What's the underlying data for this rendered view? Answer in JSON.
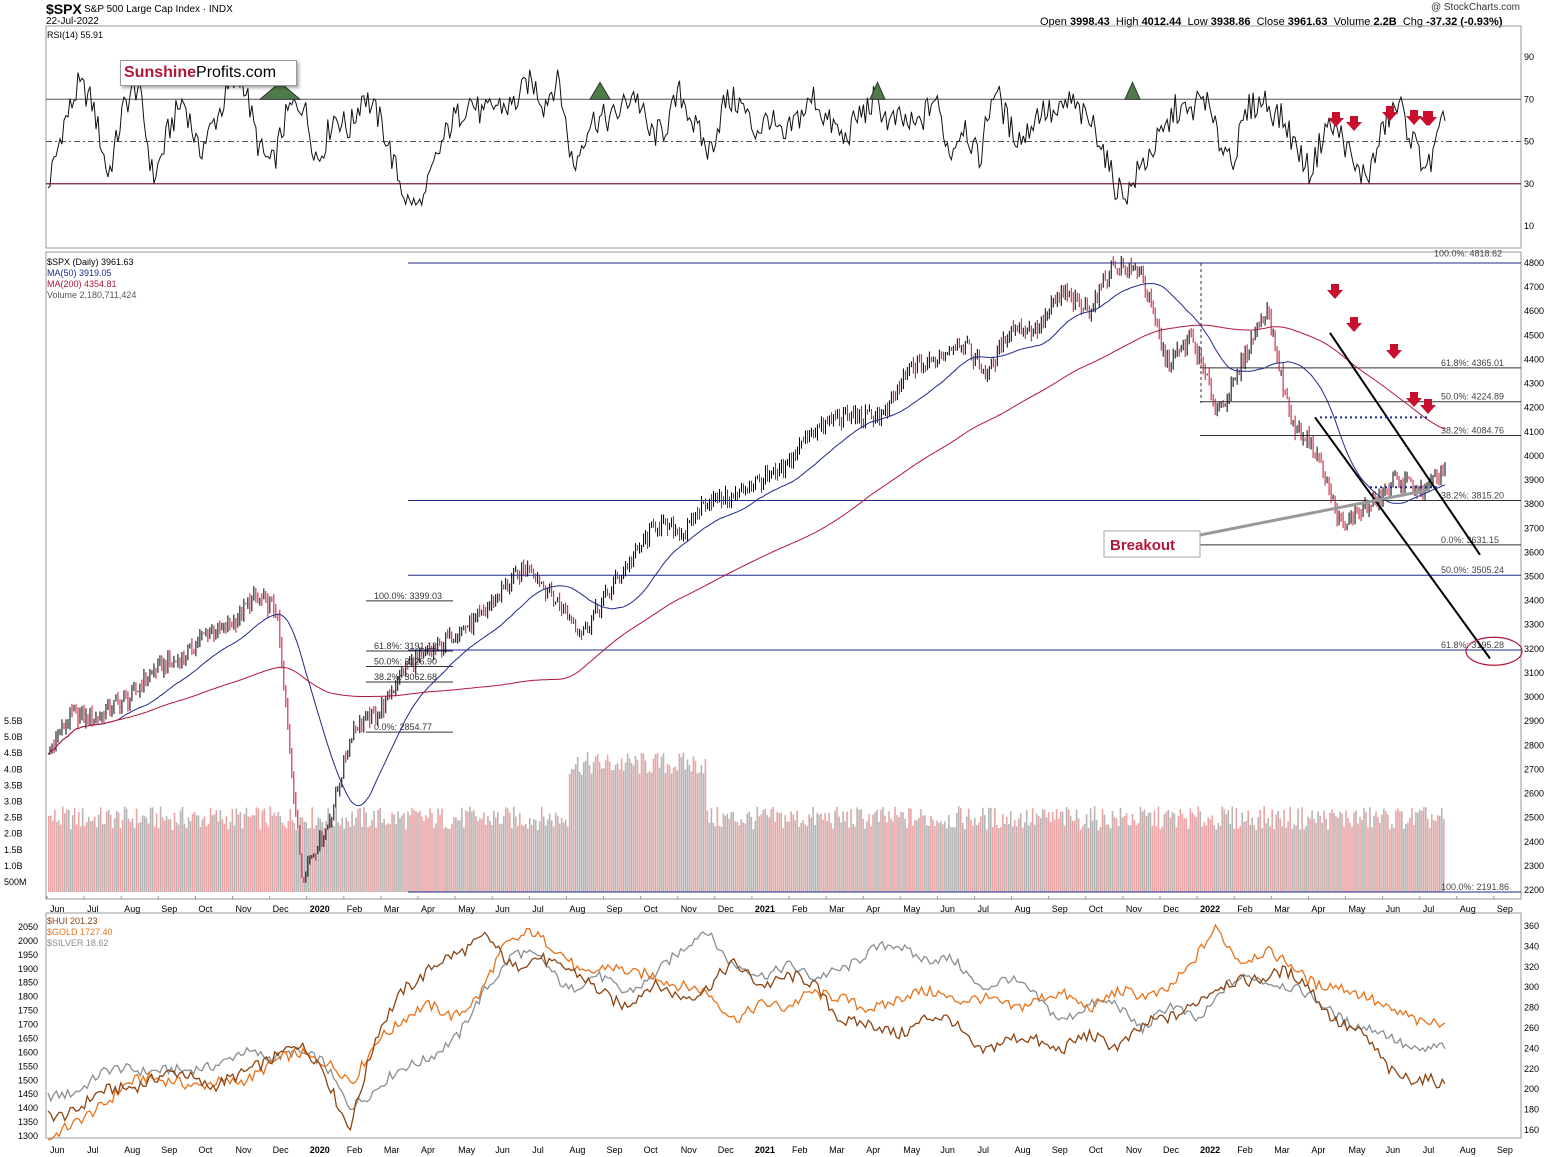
{
  "header": {
    "symbol": "$SPX",
    "subtitle": "S&P 500 Large Cap Index · INDX",
    "date": "22-Jul-2022",
    "credit": "@ StockCharts.com",
    "ohlc": {
      "open_label": "Open",
      "open": "3998.43",
      "high_label": "High",
      "high": "4012.44",
      "low_label": "Low",
      "low": "3938.86",
      "close_label": "Close",
      "close": "3961.63",
      "volume_label": "Volume",
      "volume": "2.2B",
      "chg_label": "Chg",
      "chg": "-37.32 (-0.93%)"
    }
  },
  "logo": {
    "part1": "Sunshine",
    "part2": "Profits.com"
  },
  "colors": {
    "price_up": "#000000",
    "price_down": "#c8102e",
    "ma50": "#1f2a8c",
    "ma200": "#b0173a",
    "hline": "#1f2a8c",
    "fib": "#333333",
    "arrow": "#c8102e",
    "hui": "#8b4513",
    "gold": "#e8731a",
    "silver": "#888f94",
    "rsi_fill": "#4f7a4a",
    "vol_red": "#e9a5a5",
    "vol_gray": "#b5b5b5"
  },
  "chart_data": [
    {
      "id": "rsi",
      "type": "line",
      "title": "RSI(14) 55.91",
      "y_ticks": [
        10,
        30,
        50,
        70,
        90
      ],
      "ylim": [
        0,
        100
      ],
      "reference_lines": [
        30,
        50,
        70
      ],
      "last_value": 55.91,
      "approx_series": [
        28,
        62,
        74,
        64,
        38,
        66,
        72,
        34,
        58,
        66,
        44,
        63,
        72,
        76,
        52,
        40,
        60,
        70,
        44,
        58,
        54,
        78,
        60,
        36,
        24,
        22,
        40,
        62,
        74,
        58,
        66,
        72,
        78,
        64,
        84,
        38,
        54,
        62,
        68,
        70,
        52,
        60,
        72,
        54,
        48,
        70,
        64,
        56,
        66,
        46,
        60,
        76,
        58,
        46,
        66,
        72,
        54,
        60,
        62,
        68,
        42,
        64,
        40,
        72,
        60,
        54,
        60,
        62,
        74,
        58,
        50,
        34,
        26,
        36,
        54,
        68,
        58,
        72,
        54,
        40,
        64,
        74,
        62,
        44,
        38,
        60,
        50,
        36,
        40,
        56,
        64,
        52,
        38,
        56
      ],
      "down_arrows_count": 6,
      "annotation": "Sunshine Profits.com"
    },
    {
      "id": "spx",
      "type": "candlestick",
      "title": "$SPX (Daily) 3961.63",
      "legend": [
        "MA(50) 3919.05",
        "MA(200) 4354.81",
        "Volume 2,180,711,424"
      ],
      "ylim": [
        2200,
        4800
      ],
      "y_ticks": [
        2200,
        2300,
        2400,
        2500,
        2600,
        2700,
        2800,
        2900,
        3000,
        3100,
        3200,
        3300,
        3400,
        3500,
        3600,
        3700,
        3800,
        3900,
        4000,
        4100,
        4200,
        4300,
        4400,
        4500,
        4600,
        4700,
        4800
      ],
      "volume_ticks": [
        "500M",
        "1.0B",
        "1.5B",
        "2.0B",
        "2.5B",
        "3.0B",
        "3.5B",
        "4.0B",
        "4.5B",
        "5.0B",
        "5.5B"
      ],
      "x_labels": [
        "Jun",
        "Jul",
        "Aug",
        "Sep",
        "Oct",
        "Nov",
        "Dec",
        "2020",
        "Feb",
        "Mar",
        "Apr",
        "May",
        "Jun",
        "Jul",
        "Aug",
        "Sep",
        "Oct",
        "Nov",
        "Dec",
        "2021",
        "Feb",
        "Mar",
        "Apr",
        "May",
        "Jun",
        "Jul",
        "Aug",
        "Sep",
        "Oct",
        "Nov",
        "Dec",
        "2022",
        "Feb",
        "Mar",
        "Apr",
        "May",
        "Jun",
        "Jul",
        "Aug",
        "Sep"
      ],
      "price_path": [
        2750,
        2950,
        2900,
        3000,
        3080,
        3160,
        3230,
        3300,
        3390,
        3380,
        2240,
        2480,
        2850,
        2950,
        3100,
        3200,
        3240,
        3350,
        3440,
        3560,
        3380,
        3290,
        3400,
        3600,
        3700,
        3700,
        3800,
        3850,
        3880,
        3960,
        4080,
        4180,
        4140,
        4200,
        4350,
        4420,
        4460,
        4360,
        4520,
        4550,
        4660,
        4620,
        4780,
        4790,
        4370,
        4510,
        4170,
        4390,
        4600,
        4140,
        3990,
        3710,
        3780,
        3910,
        3840,
        3960
      ],
      "horizontal_lines": [
        4800,
        3815.2,
        3505.24,
        3195.28,
        2191.86
      ],
      "fib_2020": [
        {
          "label": "100.0%: 3399.03",
          "value": 3399.03
        },
        {
          "label": "61.8%: 3191.12",
          "value": 3191.12
        },
        {
          "label": "50.0%: 3126.90",
          "value": 3126.9
        },
        {
          "label": "38.2%: 3062.68",
          "value": 3062.68
        },
        {
          "label": "0.0%: 2854.77",
          "value": 2854.77
        }
      ],
      "fib_2022": [
        {
          "label": "61.8%: 4365.01",
          "value": 4365.01
        },
        {
          "label": "50.0%: 4224.89",
          "value": 4224.89
        },
        {
          "label": "38.2%: 4084.76",
          "value": 4084.76
        },
        {
          "label": "38.2%: 3815.20",
          "value": 3815.2
        },
        {
          "label": "0.0%: 3631.15",
          "value": 3631.15
        },
        {
          "label": "50.0%: 3505.24",
          "value": 3505.24
        },
        {
          "label": "61.8%: 3195.28",
          "value": 3195.28
        },
        {
          "label": "100.0%: 2191.86",
          "value": 2191.86
        },
        {
          "label": "100.0%: 4818.62",
          "value": 4818.62
        }
      ],
      "annotation": "Breakout",
      "down_arrows_count": 5
    },
    {
      "id": "metals",
      "type": "line",
      "legend": [
        "$HUI 201.23",
        "$GOLD 1727.40",
        "$SILVER 18.62"
      ],
      "left_ticks": [
        1300,
        1350,
        1400,
        1450,
        1500,
        1550,
        1600,
        1650,
        1700,
        1750,
        1800,
        1850,
        1900,
        1950,
        2000,
        2050
      ],
      "right_ticks": [
        160,
        180,
        200,
        220,
        240,
        260,
        280,
        300,
        320,
        340,
        360
      ],
      "gold_path": [
        1290,
        1330,
        1410,
        1480,
        1500,
        1510,
        1470,
        1490,
        1520,
        1560,
        1600,
        1570,
        1480,
        1660,
        1720,
        1760,
        1740,
        1800,
        1980,
        2050,
        1960,
        1880,
        1920,
        1870,
        1880,
        1840,
        1800,
        1730,
        1770,
        1750,
        1830,
        1790,
        1760,
        1780,
        1800,
        1820,
        1790,
        1780,
        1770,
        1790,
        1800,
        1770,
        1810,
        1800,
        1830,
        1900,
        2050,
        1930,
        1950,
        1920,
        1840,
        1820,
        1810,
        1740,
        1700,
        1727
      ],
      "hui_path": [
        175,
        180,
        195,
        205,
        210,
        215,
        205,
        210,
        230,
        245,
        220,
        165,
        250,
        300,
        320,
        330,
        355,
        315,
        330,
        320,
        295,
        285,
        300,
        290,
        300,
        320,
        305,
        310,
        300,
        270,
        260,
        255,
        270,
        265,
        240,
        245,
        250,
        240,
        250,
        245,
        260,
        270,
        290,
        300,
        310,
        315,
        300,
        270,
        250,
        220,
        210,
        201
      ],
      "silver_path": [
        190,
        200,
        215,
        220,
        220,
        215,
        225,
        235,
        230,
        240,
        225,
        185,
        200,
        220,
        235,
        250,
        300,
        335,
        325,
        300,
        310,
        295,
        310,
        330,
        360,
        320,
        310,
        325,
        305,
        320,
        335,
        340,
        330,
        325,
        300,
        310,
        290,
        270,
        280,
        285,
        260,
        280,
        270,
        300,
        310,
        305,
        290,
        275,
        260,
        250,
        240,
        240
      ]
    }
  ]
}
